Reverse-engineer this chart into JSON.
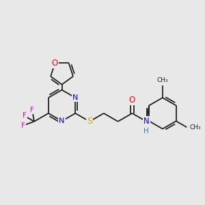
{
  "background_color": "#e8e8e8",
  "bond_color": "#1a1a1a",
  "atom_colors": {
    "N": "#0000ff",
    "O": "#ff0000",
    "S": "#ccaa00",
    "F": "#ff00cc",
    "H": "#2288aa",
    "C": "#1a1a1a"
  },
  "font_size": 7.5,
  "figsize": [
    3.0,
    3.0
  ],
  "dpi": 100,
  "lw": 1.25
}
